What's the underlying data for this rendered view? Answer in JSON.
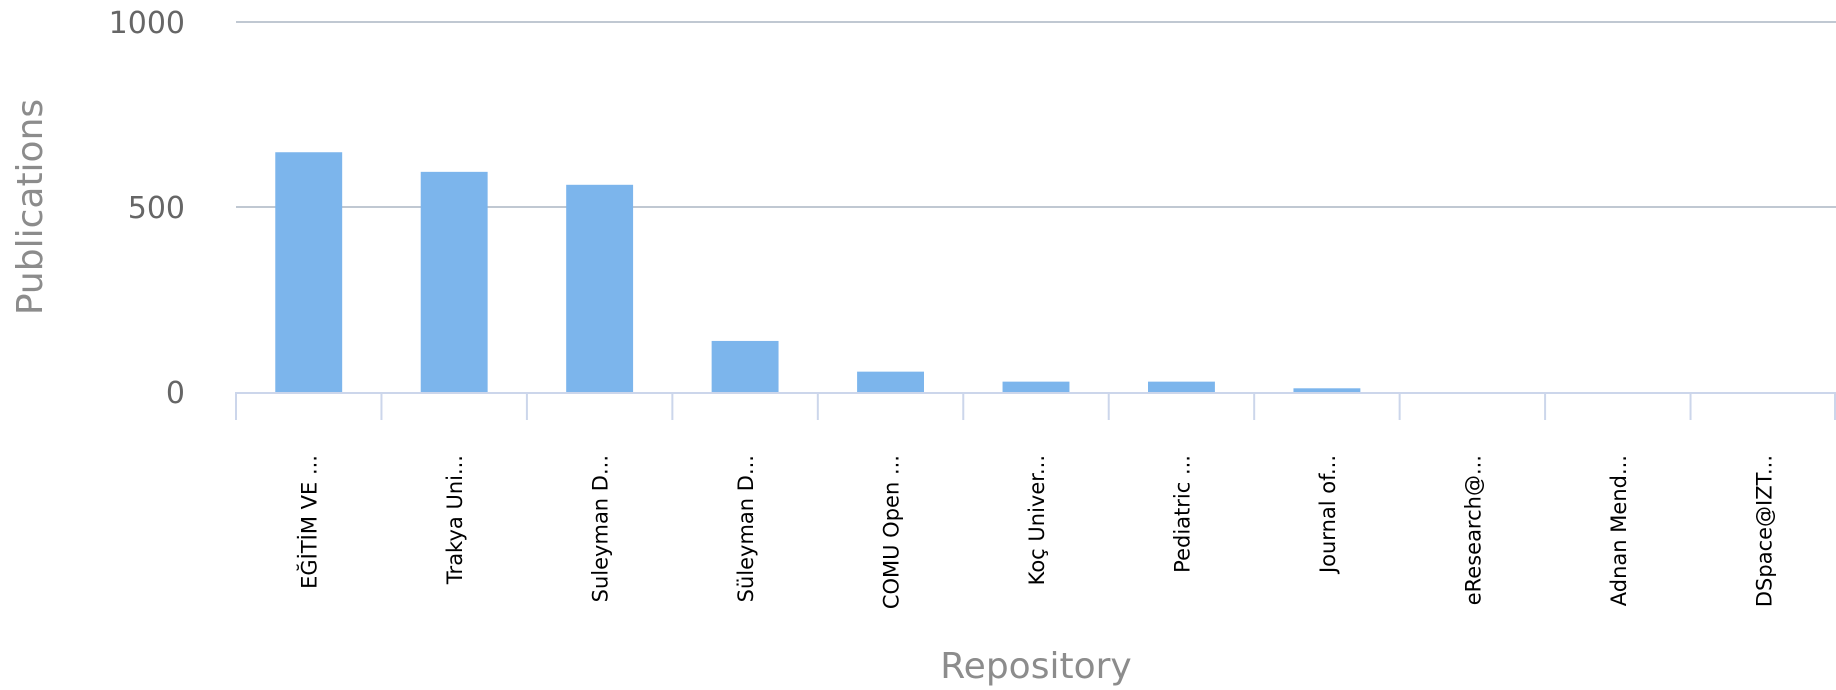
{
  "chart_data": {
    "type": "bar",
    "title": "",
    "xlabel": "Repository",
    "ylabel": "Publications",
    "ylim": [
      0,
      1000
    ],
    "yticks": [
      0,
      500,
      1000
    ],
    "grid": true,
    "legend": "none",
    "categories": [
      "EĞİTİM VE ...",
      "Trakya Uni...",
      "Suleyman D...",
      "Süleyman D...",
      "COMU Open ...",
      "Koç Univer...",
      "Pediatric ...",
      "Journal of...",
      "eResearch@...",
      "Adnan Mend...",
      "DSpace@IZT..."
    ],
    "values": [
      648,
      595,
      560,
      138,
      55,
      28,
      28,
      10,
      0,
      0,
      0
    ],
    "colors": {
      "bar": "#7cb5ec",
      "grid": "#c0c8d2",
      "axis": "#ccd6eb"
    }
  }
}
